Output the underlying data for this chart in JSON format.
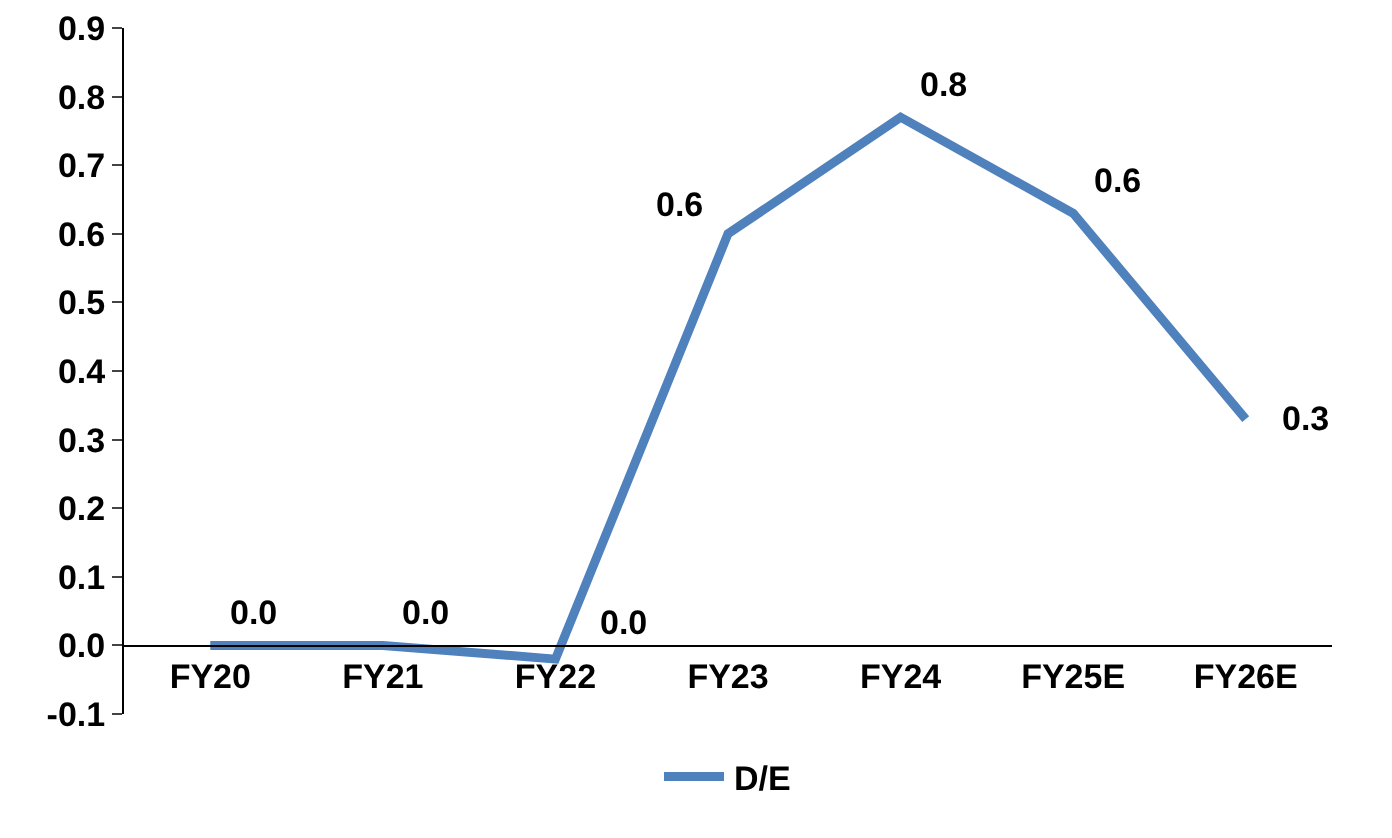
{
  "chart_data": {
    "type": "line",
    "categories": [
      "FY20",
      "FY21",
      "FY22",
      "FY23",
      "FY24",
      "FY25E",
      "FY26E"
    ],
    "series": [
      {
        "name": "D/E",
        "color": "#4f81bd",
        "values": [
          0.0,
          0.0,
          -0.02,
          0.6,
          0.77,
          0.63,
          0.33
        ],
        "value_labels": [
          "0.0",
          "0.0",
          "0.0",
          "0.6",
          "0.8",
          "0.6",
          "0.3"
        ]
      }
    ],
    "ylim": [
      -0.1,
      0.9
    ],
    "yticks": [
      {
        "value": -0.1,
        "label": "-0.1"
      },
      {
        "value": 0,
        "label": "0.0"
      },
      {
        "value": 0.1,
        "label": "0.1"
      },
      {
        "value": 0.2,
        "label": "0.2"
      },
      {
        "value": 0.3,
        "label": "0.3"
      },
      {
        "value": 0.4,
        "label": "0.4"
      },
      {
        "value": 0.5,
        "label": "0.5"
      },
      {
        "value": 0.6,
        "label": "0.6"
      },
      {
        "value": 0.7,
        "label": "0.7"
      },
      {
        "value": 0.8,
        "label": "0.8"
      },
      {
        "value": 0.9,
        "label": "0.9"
      }
    ],
    "grid": false,
    "legend": "bottom",
    "marker": "none",
    "line_style": "solid"
  }
}
